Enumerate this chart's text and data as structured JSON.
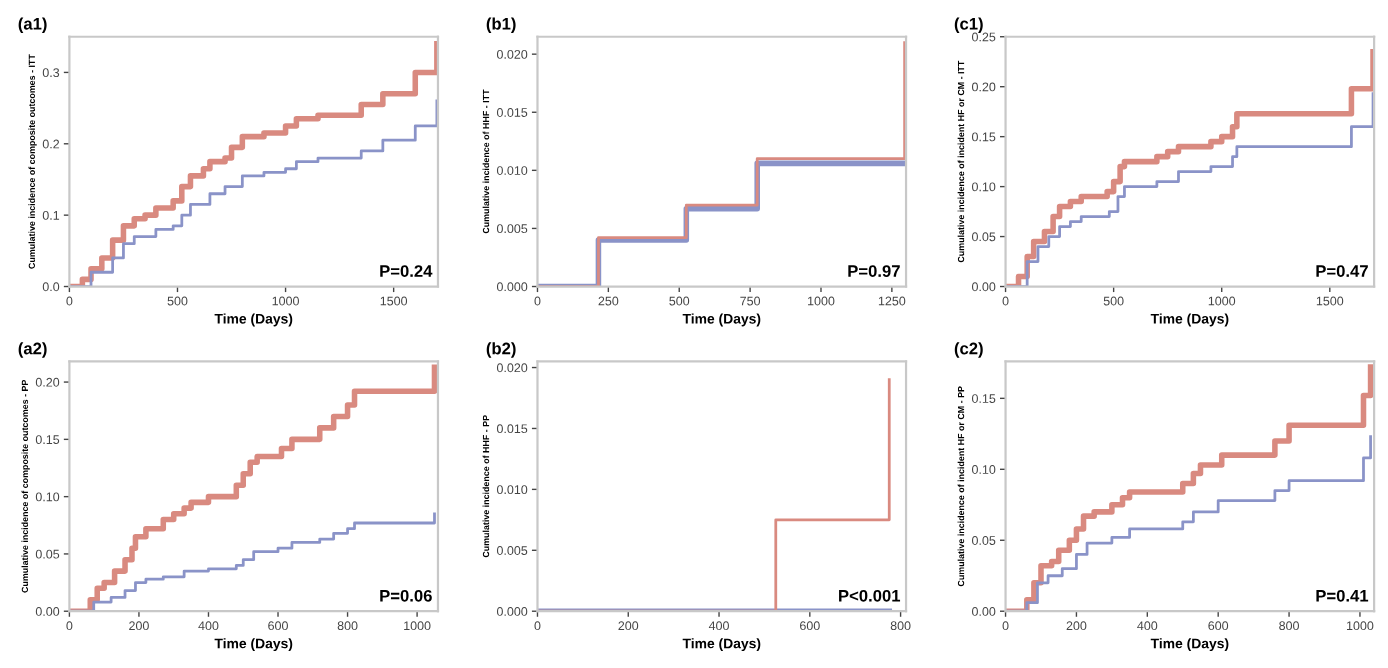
{
  "chart_data": [
    {
      "type": "step",
      "title": "(a1)",
      "xlabel": "Time (Days)",
      "ylabel": "Cumulative incidence of composite outcomes - ITT",
      "annotations": [
        "P=0.24"
      ],
      "xlim": [
        0,
        1705
      ],
      "xticks": [
        0,
        500,
        1000,
        1500
      ],
      "ylim": [
        0,
        0.35
      ],
      "yticks": [
        {
          "value": 0,
          "label": "0.0"
        },
        0.1,
        0.2,
        0.3
      ],
      "grid": false,
      "series": [
        {
          "color": "#d98a80",
          "x": [
            0,
            40,
            60,
            100,
            150,
            200,
            250,
            300,
            350,
            400,
            480,
            520,
            560,
            620,
            650,
            720,
            750,
            800,
            900,
            1000,
            1050,
            1150,
            1350,
            1450,
            1600,
            1700,
            1700
          ],
          "values": [
            0,
            0,
            0.01,
            0.025,
            0.04,
            0.065,
            0.085,
            0.095,
            0.1,
            0.11,
            0.12,
            0.14,
            0.155,
            0.165,
            0.175,
            0.18,
            0.195,
            0.21,
            0.215,
            0.225,
            0.235,
            0.24,
            0.255,
            0.27,
            0.3,
            0.3,
            0.34
          ]
        },
        {
          "color": "#8a93c8",
          "x": [
            0,
            60,
            100,
            200,
            250,
            300,
            400,
            480,
            520,
            560,
            650,
            720,
            800,
            900,
            1000,
            1050,
            1150,
            1350,
            1450,
            1600,
            1700,
            1700
          ],
          "values": [
            0,
            0,
            0.02,
            0.04,
            0.06,
            0.07,
            0.08,
            0.085,
            0.1,
            0.115,
            0.13,
            0.14,
            0.155,
            0.16,
            0.165,
            0.175,
            0.18,
            0.19,
            0.205,
            0.225,
            0.225,
            0.26
          ]
        }
      ]
    },
    {
      "type": "step",
      "title": "(b1)",
      "xlabel": "Time (Days)",
      "ylabel": "Cumulative incidence of HHF - ITT",
      "annotations": [
        "P=0.97"
      ],
      "xlim": [
        0,
        1300
      ],
      "xticks": [
        0,
        250,
        500,
        750,
        1000,
        1250
      ],
      "ylim": [
        0,
        0.0215
      ],
      "yticks": [
        {
          "value": 0,
          "label": "0.000"
        },
        {
          "value": 0.005,
          "label": "0.005"
        },
        {
          "value": 0.01,
          "label": "0.010"
        },
        {
          "value": 0.015,
          "label": "0.015"
        },
        {
          "value": 0.02,
          "label": "0.020"
        }
      ],
      "grid": false,
      "series": [
        {
          "color": "#8a93c8",
          "x": [
            0,
            215,
            525,
            775,
            1295
          ],
          "values": [
            0,
            0.004,
            0.0067,
            0.0106,
            0.0106
          ]
        },
        {
          "color": "#d98a80",
          "x": [
            0,
            215,
            525,
            775,
            1295,
            1295
          ],
          "values": [
            0,
            0.0042,
            0.007,
            0.011,
            0.011,
            0.021
          ]
        }
      ]
    },
    {
      "type": "step",
      "title": "(c1)",
      "xlabel": "Time (Days)",
      "ylabel": "Cumulative incidence of incident HF or CM - ITT",
      "annotations": [
        "P=0.47"
      ],
      "xlim": [
        0,
        1705
      ],
      "xticks": [
        0,
        500,
        1000,
        1500
      ],
      "ylim": [
        0,
        0.25
      ],
      "yticks": [
        {
          "value": 0,
          "label": "0.00"
        },
        {
          "value": 0.05,
          "label": "0.05"
        },
        {
          "value": 0.1,
          "label": "0.10"
        },
        {
          "value": 0.15,
          "label": "0.15"
        },
        {
          "value": 0.2,
          "label": "0.20"
        },
        {
          "value": 0.25,
          "label": "0.25"
        }
      ],
      "grid": false,
      "series": [
        {
          "color": "#d98a80",
          "x": [
            0,
            40,
            60,
            100,
            130,
            180,
            220,
            250,
            300,
            350,
            470,
            500,
            530,
            550,
            700,
            750,
            800,
            950,
            1000,
            1050,
            1070,
            1600,
            1700,
            1700
          ],
          "values": [
            0,
            0,
            0.01,
            0.03,
            0.045,
            0.055,
            0.07,
            0.08,
            0.085,
            0.09,
            0.095,
            0.105,
            0.12,
            0.125,
            0.13,
            0.135,
            0.14,
            0.145,
            0.15,
            0.16,
            0.173,
            0.198,
            0.198,
            0.235
          ]
        },
        {
          "color": "#8a93c8",
          "x": [
            0,
            60,
            100,
            150,
            200,
            250,
            300,
            350,
            480,
            520,
            550,
            700,
            800,
            950,
            1050,
            1070,
            1600,
            1700,
            1700
          ],
          "values": [
            0,
            0,
            0.025,
            0.04,
            0.05,
            0.06,
            0.065,
            0.07,
            0.075,
            0.09,
            0.1,
            0.105,
            0.115,
            0.12,
            0.13,
            0.14,
            0.16,
            0.16,
            0.193
          ]
        }
      ]
    },
    {
      "type": "step",
      "title": "(a2)",
      "xlabel": "Time (Days)",
      "ylabel": "Cumulative incidence of composite outcomes - PP",
      "annotations": [
        "P=0.06"
      ],
      "xlim": [
        0,
        1060
      ],
      "xticks": [
        0,
        200,
        400,
        600,
        800,
        1000
      ],
      "ylim": [
        0,
        0.218
      ],
      "yticks": [
        {
          "value": 0,
          "label": "0.00"
        },
        {
          "value": 0.05,
          "label": "0.05"
        },
        {
          "value": 0.1,
          "label": "0.10"
        },
        {
          "value": 0.15,
          "label": "0.15"
        },
        {
          "value": 0.2,
          "label": "0.20"
        }
      ],
      "grid": false,
      "series": [
        {
          "color": "#d98a80",
          "x": [
            0,
            40,
            60,
            80,
            100,
            130,
            160,
            180,
            190,
            220,
            270,
            300,
            330,
            350,
            400,
            480,
            500,
            520,
            540,
            610,
            640,
            720,
            760,
            800,
            820,
            1050,
            1050
          ],
          "values": [
            0,
            0,
            0.01,
            0.02,
            0.025,
            0.035,
            0.045,
            0.055,
            0.065,
            0.072,
            0.08,
            0.085,
            0.09,
            0.095,
            0.1,
            0.11,
            0.12,
            0.13,
            0.135,
            0.142,
            0.15,
            0.16,
            0.17,
            0.18,
            0.192,
            0.192,
            0.213
          ]
        },
        {
          "color": "#8a93c8",
          "x": [
            0,
            40,
            70,
            120,
            160,
            190,
            220,
            270,
            330,
            400,
            480,
            500,
            530,
            600,
            640,
            720,
            760,
            800,
            820,
            1050,
            1050
          ],
          "values": [
            0,
            0,
            0.008,
            0.012,
            0.018,
            0.025,
            0.028,
            0.03,
            0.035,
            0.037,
            0.04,
            0.045,
            0.052,
            0.055,
            0.06,
            0.063,
            0.068,
            0.072,
            0.077,
            0.077,
            0.085
          ]
        }
      ]
    },
    {
      "type": "step",
      "title": "(b2)",
      "xlabel": "Time (Days)",
      "ylabel": "Cumulative incidence of HHF - PP",
      "annotations": [
        "P<0.001"
      ],
      "xlim": [
        0,
        812
      ],
      "xticks": [
        0,
        200,
        400,
        600,
        800
      ],
      "ylim": [
        0,
        0.0205
      ],
      "yticks": [
        {
          "value": 0,
          "label": "0.000"
        },
        {
          "value": 0.005,
          "label": "0.005"
        },
        {
          "value": 0.01,
          "label": "0.010"
        },
        {
          "value": 0.015,
          "label": "0.015"
        },
        {
          "value": 0.02,
          "label": "0.020"
        }
      ],
      "grid": false,
      "series": [
        {
          "color": "#8a93c8",
          "x": [
            0,
            775
          ],
          "values": [
            0,
            0
          ]
        },
        {
          "color": "#d98a80",
          "x": [
            0,
            525,
            775,
            775
          ],
          "values": [
            0,
            0.0075,
            0.0075,
            0.019
          ]
        }
      ]
    },
    {
      "type": "step",
      "title": "(c2)",
      "xlabel": "Time (Days)",
      "ylabel": "Cumulative incidence of incident HF or CM - PP",
      "annotations": [
        "P=0.41"
      ],
      "xlim": [
        0,
        1040
      ],
      "xticks": [
        0,
        200,
        400,
        600,
        800,
        1000
      ],
      "ylim": [
        0,
        0.176
      ],
      "yticks": [
        {
          "value": 0,
          "label": "0.00"
        },
        {
          "value": 0.05,
          "label": "0.05"
        },
        {
          "value": 0.1,
          "label": "0.10"
        },
        {
          "value": 0.15,
          "label": "0.15"
        }
      ],
      "grid": false,
      "series": [
        {
          "color": "#d98a80",
          "x": [
            0,
            40,
            60,
            80,
            100,
            130,
            150,
            180,
            200,
            220,
            250,
            300,
            330,
            350,
            500,
            530,
            550,
            610,
            760,
            800,
            1010,
            1010,
            1030,
            1030
          ],
          "values": [
            0,
            0,
            0.008,
            0.02,
            0.032,
            0.035,
            0.043,
            0.05,
            0.058,
            0.067,
            0.07,
            0.075,
            0.08,
            0.084,
            0.09,
            0.097,
            0.103,
            0.11,
            0.12,
            0.131,
            0.131,
            0.152,
            0.152,
            0.172
          ]
        },
        {
          "color": "#8a93c8",
          "x": [
            0,
            40,
            60,
            90,
            120,
            160,
            200,
            230,
            300,
            350,
            500,
            530,
            600,
            760,
            800,
            1010,
            1010,
            1030,
            1030
          ],
          "values": [
            0,
            0,
            0.006,
            0.02,
            0.025,
            0.03,
            0.04,
            0.048,
            0.052,
            0.058,
            0.063,
            0.07,
            0.078,
            0.085,
            0.092,
            0.092,
            0.108,
            0.108,
            0.123
          ]
        }
      ]
    }
  ]
}
